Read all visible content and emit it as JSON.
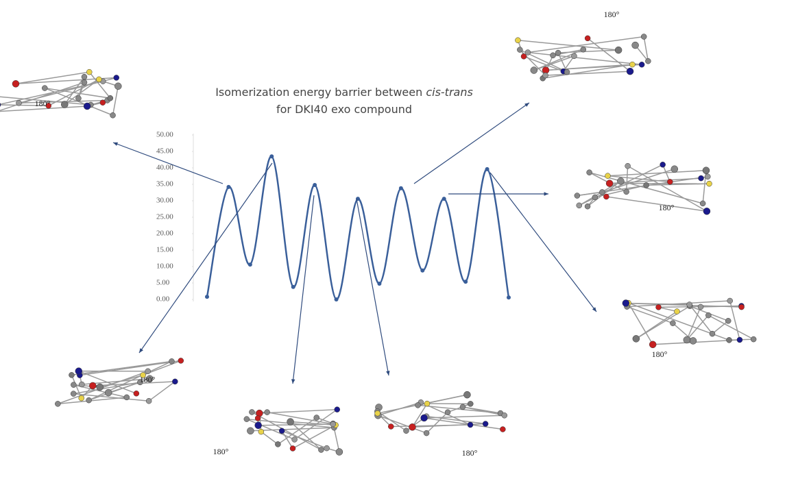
{
  "chart_data": {
    "type": "line",
    "title_lines": [
      [
        "Isomerization energy barrier between ",
        "cis-trans"
      ],
      [
        "for DKI40 exo compound"
      ]
    ],
    "categories": [
      null,
      null,
      null,
      null,
      null,
      null,
      null,
      null,
      null,
      null,
      null,
      null,
      null,
      null,
      null
    ],
    "values": [
      0.8,
      34.2,
      10.6,
      43.5,
      3.8,
      34.8,
      0,
      30.6,
      4.8,
      33.8,
      8.8,
      30.6,
      5.4,
      39.6,
      0.6
    ],
    "color": "#3a5f9a",
    "ylim": [
      0,
      50
    ],
    "yticks": [
      {
        "value": 0,
        "label": "0.00"
      },
      {
        "value": 5,
        "label": "5.00"
      },
      {
        "value": 10,
        "label": "10.00"
      },
      {
        "value": 15,
        "label": "15.00"
      },
      {
        "value": 20,
        "label": "20.00"
      },
      {
        "value": 25,
        "label": "25.00"
      },
      {
        "value": 30,
        "label": "30.00"
      },
      {
        "value": 35,
        "label": "35.00"
      },
      {
        "value": 40,
        "label": "40.00"
      },
      {
        "value": 45,
        "label": "45.00"
      },
      {
        "value": 50,
        "label": "50.00"
      }
    ],
    "annotations": [
      "180°",
      "180°",
      "180°",
      "180°",
      "180°",
      "180°",
      "180°"
    ]
  }
}
